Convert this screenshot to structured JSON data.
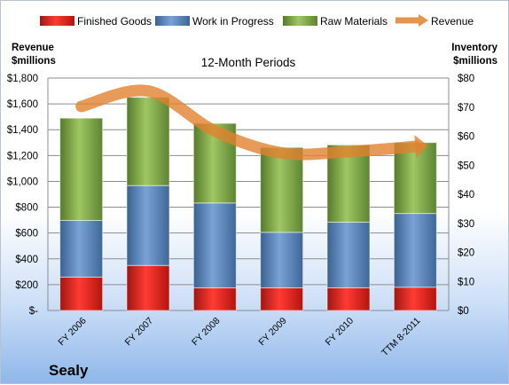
{
  "chart_data": {
    "type": "bar",
    "stacked": true,
    "subtitle": "12-Month Periods",
    "company": "Sealy",
    "categories": [
      "FY 2006",
      "FY 2007",
      "FY 2008",
      "FY 2009",
      "FY 2010",
      "TTM 8-2011"
    ],
    "left_axis": {
      "title_line1": "Revenue",
      "title_line2": "$millions",
      "range": [
        0,
        1800
      ],
      "ticks": [
        "$-",
        "$200",
        "$400",
        "$600",
        "$800",
        "$1,000",
        "$1,200",
        "$1,400",
        "$1,600",
        "$1,800"
      ]
    },
    "right_axis": {
      "title_line1": "Inventory",
      "title_line2": "$millions",
      "range": [
        0,
        80
      ],
      "ticks": [
        "$0",
        "$10",
        "$20",
        "$30",
        "$40",
        "$50",
        "$60",
        "$70",
        "$80"
      ]
    },
    "series": [
      {
        "name": "Finished Goods",
        "axis": "right",
        "color": "#e41b17",
        "values": [
          11.5,
          15.5,
          7.8,
          7.8,
          7.8,
          8.0
        ]
      },
      {
        "name": "Work in Progress",
        "axis": "right",
        "color": "#4f81bd",
        "values": [
          19.5,
          27.5,
          29.2,
          19.1,
          22.6,
          25.4
        ]
      },
      {
        "name": "Raw Materials",
        "axis": "right",
        "color": "#77a03f",
        "values": [
          35.2,
          30.4,
          27.4,
          29.2,
          26.6,
          24.4
        ]
      }
    ],
    "line_series": {
      "name": "Revenue",
      "axis": "left",
      "color": "#e2812e",
      "values": [
        1580,
        1700,
        1390,
        1220,
        1230,
        1270
      ]
    },
    "legend_position": "top",
    "grid": true
  }
}
